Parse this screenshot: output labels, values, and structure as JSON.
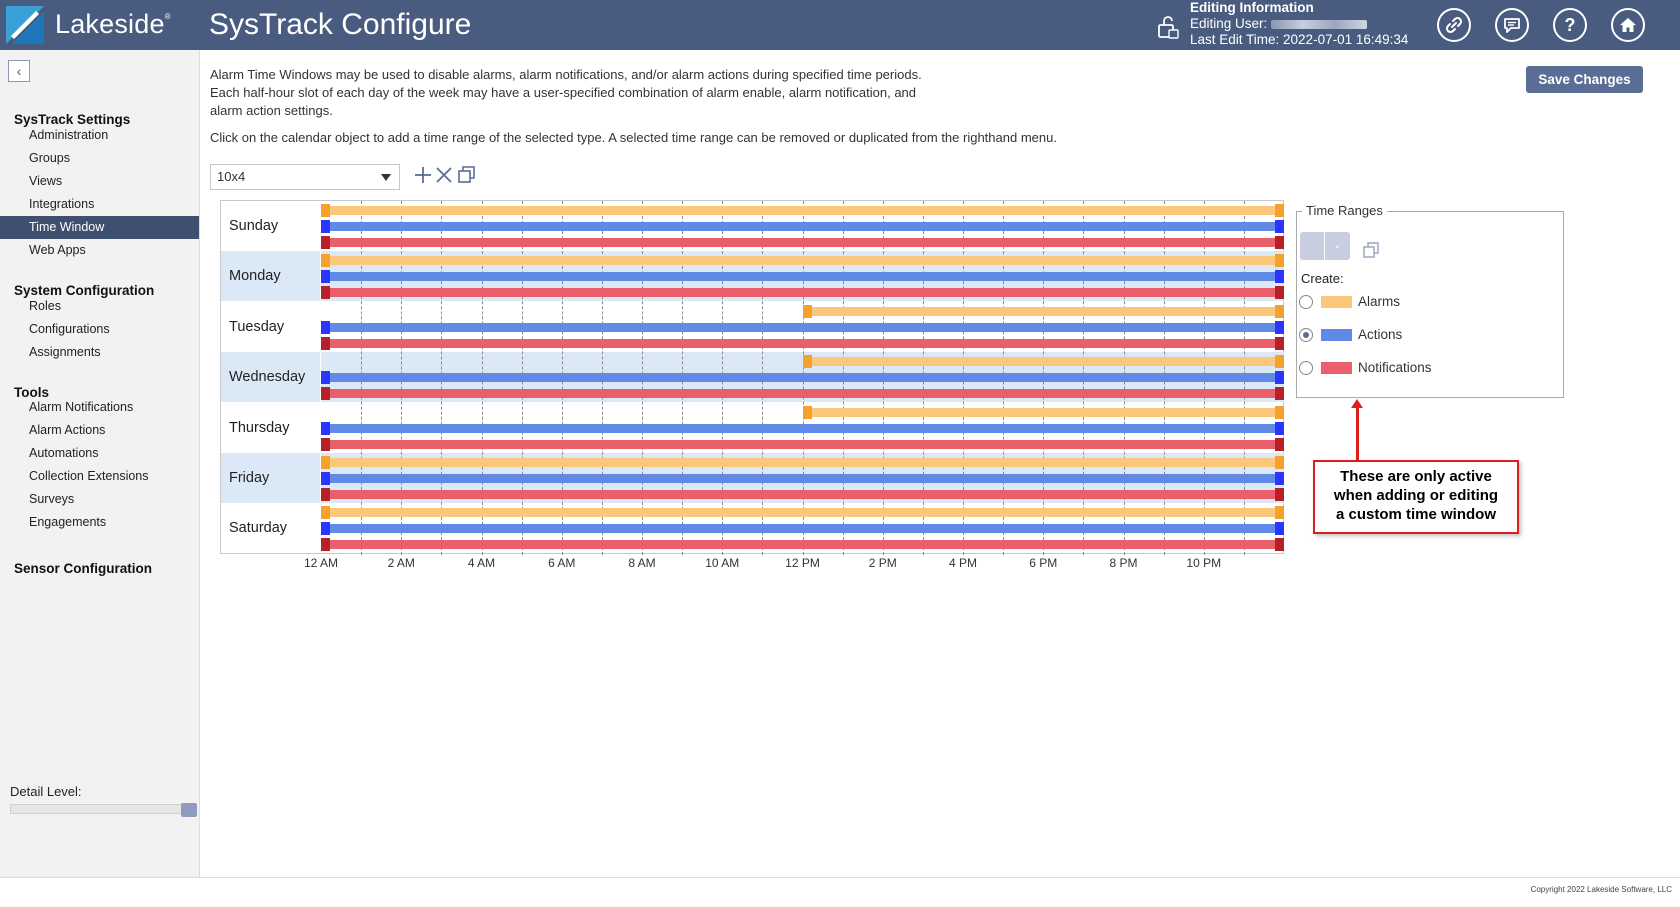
{
  "header": {
    "brand": "Lakeside",
    "app_title": "SysTrack Configure",
    "editing_title": "Editing Information",
    "editing_user_label": "Editing User:",
    "last_edit_label": "Last Edit Time: 2022-07-01 16:49:34",
    "buttons": [
      "link-icon",
      "chat-icon",
      "help-icon",
      "home-icon"
    ]
  },
  "sidebar": {
    "sections": [
      {
        "title": "SysTrack Settings",
        "items": [
          "Administration",
          "Groups",
          "Views",
          "Integrations",
          "Time Window",
          "Web Apps"
        ]
      },
      {
        "title": "System Configuration",
        "items": [
          "Roles",
          "Configurations",
          "Assignments"
        ]
      },
      {
        "title": "Tools",
        "items": [
          "Alarm Notifications",
          "Alarm Actions",
          "Automations",
          "Collection Extensions",
          "Surveys",
          "Engagements"
        ]
      },
      {
        "title": "Sensor Configuration",
        "items": []
      }
    ],
    "active_item": "Time Window",
    "detail_level_label": "Detail Level:",
    "detail_level_value": 1.0
  },
  "main": {
    "intro": "Alarm Time Windows may be used to disable alarms, alarm notifications, and/or alarm actions during specified time periods. Each half-hour slot of each day of the week may have a user-specified combination of alarm enable, alarm notification, and alarm action settings.",
    "instructions": "Click on the calendar object to add a time range of the selected type. A selected time range can be removed or duplicated from the righthand menu.",
    "save_button": "Save Changes",
    "preset_value": "10x4",
    "tool_icons": [
      "add-icon",
      "remove-icon",
      "duplicate-icon"
    ]
  },
  "calendar": {
    "days": [
      "Sunday",
      "Monday",
      "Tuesday",
      "Wednesday",
      "Thursday",
      "Friday",
      "Saturday"
    ],
    "time_labels": [
      "12 AM",
      "2 AM",
      "4 AM",
      "6 AM",
      "8 AM",
      "10 AM",
      "12 PM",
      "2 PM",
      "4 PM",
      "6 PM",
      "8 PM",
      "10 PM"
    ],
    "ranges": {
      "Sunday": {
        "alarms": [
          0,
          24
        ],
        "actions": [
          0,
          24
        ],
        "notifications": [
          0,
          24
        ]
      },
      "Monday": {
        "alarms": [
          0,
          24
        ],
        "actions": [
          0,
          24
        ],
        "notifications": [
          0,
          24
        ]
      },
      "Tuesday": {
        "alarms": [
          12,
          24
        ],
        "actions": [
          0,
          24
        ],
        "notifications": [
          0,
          24
        ]
      },
      "Wednesday": {
        "alarms": [
          12,
          24
        ],
        "actions": [
          0,
          24
        ],
        "notifications": [
          0,
          24
        ]
      },
      "Thursday": {
        "alarms": [
          12,
          24
        ],
        "actions": [
          0,
          24
        ],
        "notifications": [
          0,
          24
        ]
      },
      "Friday": {
        "alarms": [
          0,
          24
        ],
        "actions": [
          0,
          24
        ],
        "notifications": [
          0,
          24
        ]
      },
      "Saturday": {
        "alarms": [
          0,
          24
        ],
        "actions": [
          0,
          24
        ],
        "notifications": [
          0,
          24
        ]
      }
    },
    "colors": {
      "alarms": "#fbc77a",
      "actions": "#6189e6",
      "notifications": "#e9606a"
    }
  },
  "time_ranges": {
    "legend": "Time Ranges",
    "create_label": "Create:",
    "options": [
      {
        "label": "Alarms",
        "checked": false,
        "color": "#fbc77a"
      },
      {
        "label": "Actions",
        "checked": true,
        "color": "#6189e6"
      },
      {
        "label": "Notifications",
        "checked": false,
        "color": "#e9606a"
      }
    ]
  },
  "annotation": {
    "lines": [
      "These are only active",
      "when adding or editing",
      "a custom time window"
    ]
  },
  "footer": {
    "copyright": "Copyright 2022 Lakeside Software, LLC"
  }
}
